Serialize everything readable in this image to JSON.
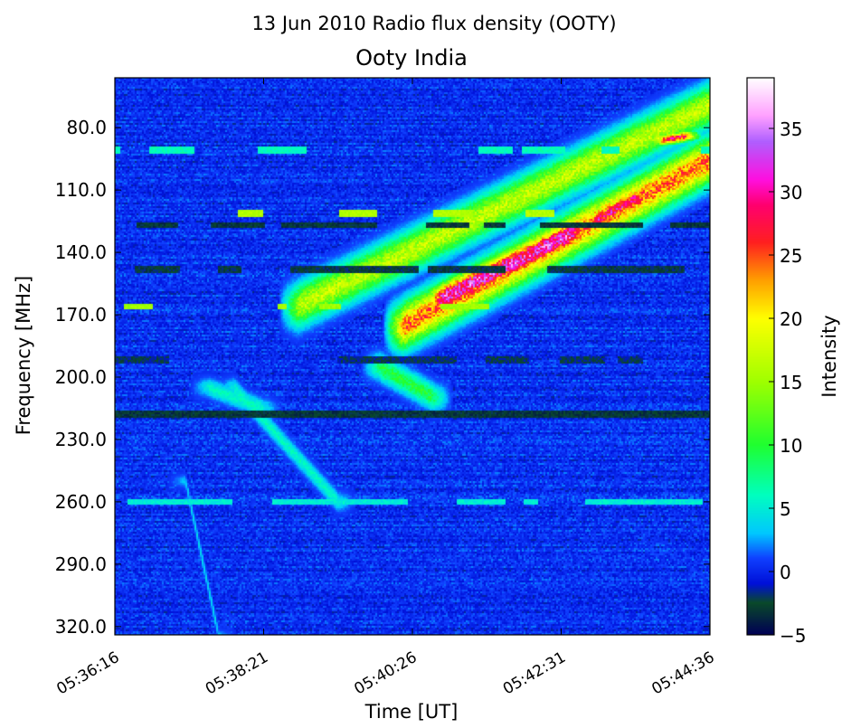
{
  "chart_data": {
    "type": "heatmap",
    "suptitle": "13 Jun 2010 Radio flux density (OOTY)",
    "title": "Ooty India",
    "xlabel": "Time [UT]",
    "ylabel": "Frequency [MHz]",
    "x_ticks": [
      "05:36:16",
      "05:38:21",
      "05:40:26",
      "05:42:31",
      "05:44:36"
    ],
    "y_ticks": [
      "80.0",
      "110.0",
      "140.0",
      "170.0",
      "200.0",
      "230.0",
      "260.0",
      "290.0",
      "320.0"
    ],
    "ylim": [
      56,
      324
    ],
    "y_inverted": true,
    "colorbar": {
      "label": "Intensity",
      "range": [
        -5,
        39
      ],
      "ticks": [
        "35",
        "30",
        "25",
        "20",
        "15",
        "10",
        "5",
        "0",
        "−5"
      ]
    },
    "colormap": [
      {
        "v": -5,
        "color": "#000055"
      },
      {
        "v": -2.5,
        "color": "#0a4a2a"
      },
      {
        "v": -1,
        "color": "#0010d8"
      },
      {
        "v": 1,
        "color": "#1040ff"
      },
      {
        "v": 3,
        "color": "#00c8ff"
      },
      {
        "v": 6,
        "color": "#00ffc0"
      },
      {
        "v": 10,
        "color": "#20ff30"
      },
      {
        "v": 15,
        "color": "#a0ff00"
      },
      {
        "v": 20,
        "color": "#ffff00"
      },
      {
        "v": 23,
        "color": "#ffa000"
      },
      {
        "v": 26,
        "color": "#ff2020"
      },
      {
        "v": 29,
        "color": "#ff0070"
      },
      {
        "v": 31,
        "color": "#ff10e0"
      },
      {
        "v": 34,
        "color": "#b060ff"
      },
      {
        "v": 36,
        "color": "#ffa0ff"
      },
      {
        "v": 39,
        "color": "#ffffff"
      }
    ],
    "features": [
      {
        "name": "drifting burst upper lane",
        "t0": 2.45,
        "t1": 8.25,
        "f0": 166,
        "f1": 65,
        "width": 22,
        "peak": 17
      },
      {
        "name": "drifting burst lower lane",
        "t0": 3.85,
        "t1": 8.55,
        "f0": 176,
        "f1": 85,
        "width": 24,
        "peak": 25
      },
      {
        "name": "burst core",
        "t0": 4.35,
        "t1": 6.2,
        "f0": 163,
        "f1": 130,
        "width": 16,
        "peak": 33
      },
      {
        "name": "burst knot",
        "t0": 6.45,
        "t1": 7.05,
        "f0": 125,
        "f1": 113,
        "width": 10,
        "peak": 30
      },
      {
        "name": "burst knot high",
        "t0": 7.35,
        "t1": 7.7,
        "f0": 86,
        "f1": 84,
        "width": 6,
        "peak": 28
      },
      {
        "name": "faint streak",
        "t0": 1.6,
        "t1": 3.0,
        "f0": 205,
        "f1": 260,
        "width": 10,
        "peak": 6
      },
      {
        "name": "faint streak",
        "t0": 0.95,
        "t1": 1.4,
        "f0": 250,
        "f1": 325,
        "width": 7,
        "peak": 4
      },
      {
        "name": "patch",
        "t0": 3.55,
        "t1": 4.3,
        "f0": 195,
        "f1": 210,
        "width": 14,
        "peak": 10
      },
      {
        "name": "patch",
        "t0": 1.25,
        "t1": 2.0,
        "f0": 205,
        "f1": 215,
        "width": 10,
        "peak": 6
      }
    ],
    "bands": [
      {
        "f": 91,
        "value": 6,
        "coverage": 0.35
      },
      {
        "f": 121,
        "value": 16,
        "coverage": 0.35
      },
      {
        "f": 127,
        "value": -3,
        "coverage": 0.6
      },
      {
        "f": 148,
        "value": -2.5,
        "coverage": 0.5
      },
      {
        "f": 166,
        "value": 15,
        "coverage": 0.1
      },
      {
        "f": 192,
        "value": -2,
        "coverage": 0.4
      },
      {
        "f": 218,
        "value": -3,
        "coverage": 0.9
      },
      {
        "f": 260,
        "value": 5,
        "coverage": 0.7
      }
    ]
  }
}
